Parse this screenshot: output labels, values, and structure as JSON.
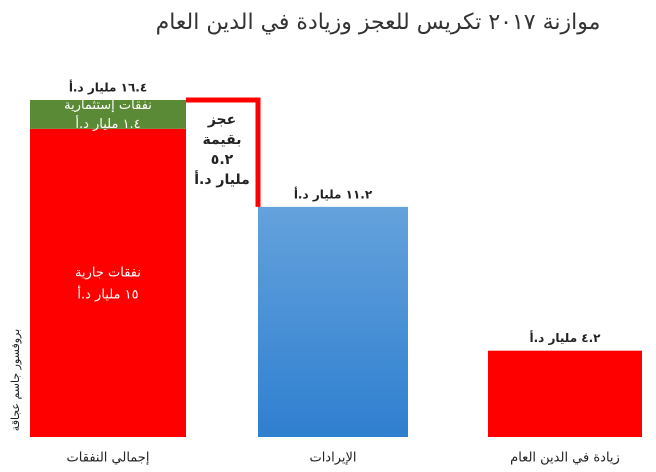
{
  "chart_data": {
    "type": "stacked_bar",
    "title": "موازنة ٢٠١٧ تكريس للعجز وزيادة في الدين العام",
    "categories": [
      "إجمالي النفقات",
      "الإيرادات",
      "زيادة في الدين العام"
    ],
    "series": [
      {
        "name": "نفقات جارية",
        "color": "#ff0000",
        "values": [
          15,
          null,
          null
        ],
        "value_labels": [
          "١٥ مليار د.أ",
          null,
          null
        ]
      },
      {
        "name": "نفقات إستثمارية",
        "color": "#5a8a35",
        "values": [
          1.4,
          null,
          null
        ],
        "value_labels": [
          "١.٤ مليار د.أ",
          null,
          null
        ]
      },
      {
        "color": "#4a90d9",
        "values": [
          null,
          11.2,
          null
        ],
        "value_labels": [
          null,
          "١١.٢ مليار د.أ",
          null
        ]
      },
      {
        "color": "#ff0000",
        "values": [
          null,
          null,
          4.2
        ],
        "value_labels": [
          null,
          null,
          "٤.٢ مليار د.أ"
        ]
      }
    ],
    "totals": [
      16.4,
      null,
      null
    ],
    "total_labels": [
      "١٦.٤ مليار د.أ",
      null,
      null
    ],
    "annotation": {
      "lines": [
        "عجز",
        "بقيمة",
        "٥.٢",
        "مليار د.أ"
      ],
      "value": 5.2,
      "color": "#ff0000"
    },
    "side_note": "بروفسور جاسم عجاقة"
  }
}
